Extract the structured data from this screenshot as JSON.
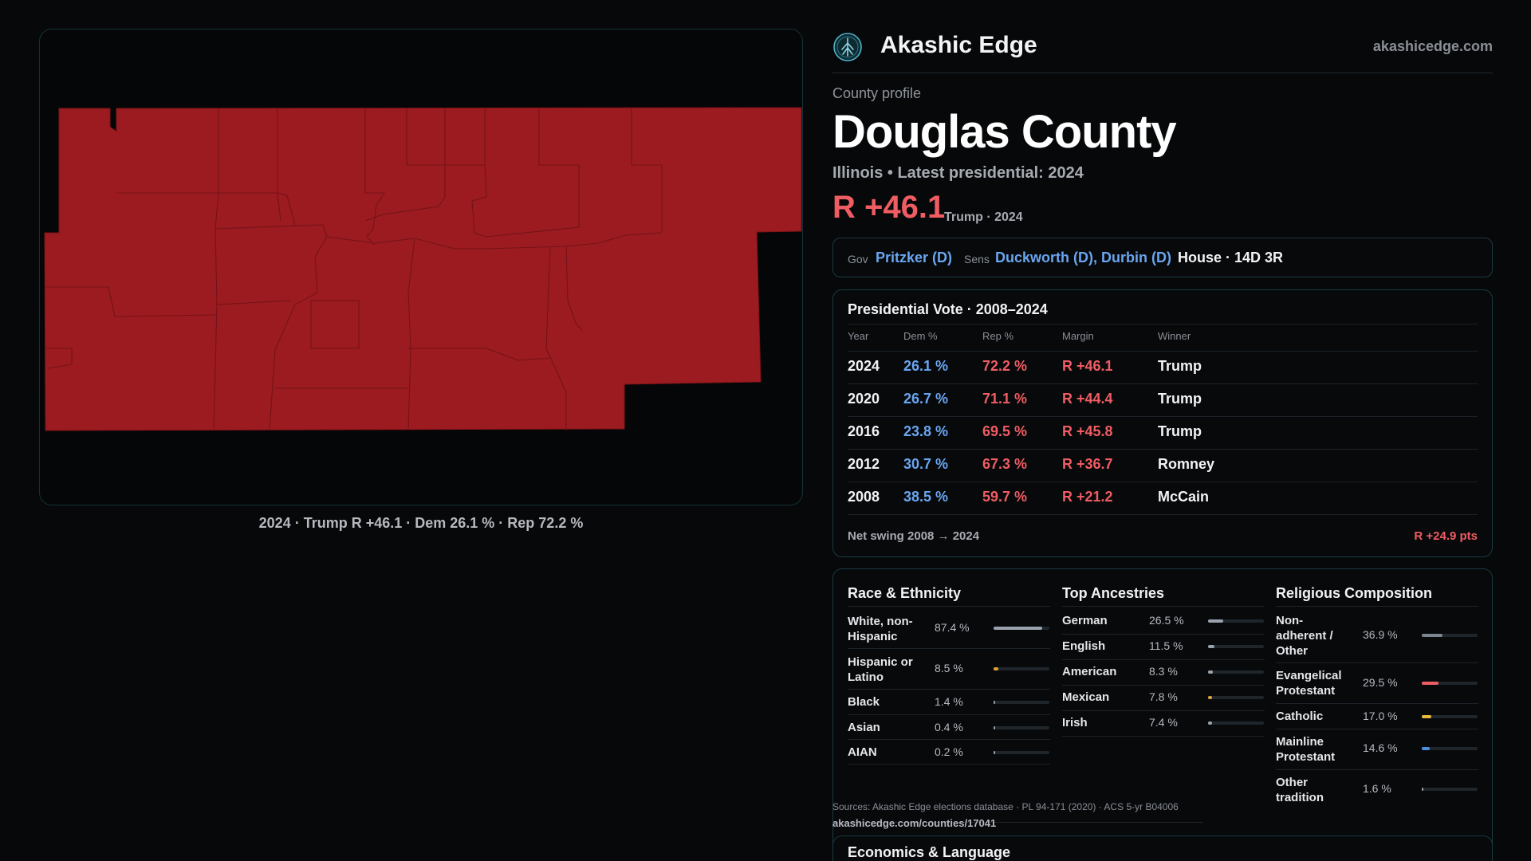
{
  "brand": {
    "name": "Akashic Edge",
    "url": "akashicedge.com",
    "logo_icon": "tree-emblem-icon",
    "accent": "#4fb3c8"
  },
  "profile": {
    "kicker": "County profile",
    "title": "Douglas County",
    "subtitle": "Illinois • Latest presidential: 2024",
    "margin": "R +46.1",
    "margin_note": "Trump · 2024",
    "rep_color": "#9b1b21"
  },
  "map": {
    "caption": "2024 · Trump R +46.1 · Dem 26.1 % · Rep 72.2 %"
  },
  "officials": {
    "gov_label": "Gov",
    "gov": "Pritzker (D)",
    "sens_label": "Sens",
    "sens": "Duckworth (D), Durbin (D)",
    "house": "House · 14D 3R"
  },
  "presidential": {
    "title": "Presidential Vote · 2008–2024",
    "headers": [
      "Year",
      "Dem %",
      "Rep %",
      "Margin",
      "Winner"
    ],
    "rows": [
      {
        "year": "2024",
        "dem": "26.1 %",
        "rep": "72.2 %",
        "margin": "R +46.1",
        "winner": "Trump"
      },
      {
        "year": "2020",
        "dem": "26.7 %",
        "rep": "71.1 %",
        "margin": "R +44.4",
        "winner": "Trump"
      },
      {
        "year": "2016",
        "dem": "23.8 %",
        "rep": "69.5 %",
        "margin": "R +45.8",
        "winner": "Trump"
      },
      {
        "year": "2012",
        "dem": "30.7 %",
        "rep": "67.3 %",
        "margin": "R +36.7",
        "winner": "Romney"
      },
      {
        "year": "2008",
        "dem": "38.5 %",
        "rep": "59.7 %",
        "margin": "R +21.2",
        "winner": "McCain"
      }
    ],
    "swing_label": "Net swing 2008 → 2024",
    "swing_value": "R +24.9 pts"
  },
  "race": {
    "title": "Race & Ethnicity",
    "rows": [
      {
        "label": "White, non-Hispanic",
        "value": "87.4 %",
        "pct": 87.4,
        "color": "#9aa3ad"
      },
      {
        "label": "Hispanic or Latino",
        "value": "8.5 %",
        "pct": 8.5,
        "color": "#e0a13a"
      },
      {
        "label": "Black",
        "value": "1.4 %",
        "pct": 1.4,
        "color": "#9aa3ad"
      },
      {
        "label": "Asian",
        "value": "0.4 %",
        "pct": 0.4,
        "color": "#9aa3ad"
      },
      {
        "label": "AIAN",
        "value": "0.2 %",
        "pct": 0.2,
        "color": "#9aa3ad"
      }
    ]
  },
  "ancestries": {
    "title": "Top Ancestries",
    "rows": [
      {
        "label": "German",
        "value": "26.5 %",
        "pct": 26.5,
        "color": "#9aa3ad"
      },
      {
        "label": "English",
        "value": "11.5 %",
        "pct": 11.5,
        "color": "#9aa3ad"
      },
      {
        "label": "American",
        "value": "8.3 %",
        "pct": 8.3,
        "color": "#9aa3ad"
      },
      {
        "label": "Mexican",
        "value": "7.8 %",
        "pct": 7.8,
        "color": "#e0a13a"
      },
      {
        "label": "Irish",
        "value": "7.4 %",
        "pct": 7.4,
        "color": "#9aa3ad"
      }
    ]
  },
  "religion": {
    "title": "Religious Composition",
    "rows": [
      {
        "label": "Non-adherent / Other",
        "value": "36.9 %",
        "pct": 36.9,
        "color": "#7d8590"
      },
      {
        "label": "Evangelical Protestant",
        "value": "29.5 %",
        "pct": 29.5,
        "color": "#ef5d63"
      },
      {
        "label": "Catholic",
        "value": "17.0 %",
        "pct": 17.0,
        "color": "#e6b93a"
      },
      {
        "label": "Mainline Protestant",
        "value": "14.6 %",
        "pct": 14.6,
        "color": "#4a8fe0"
      },
      {
        "label": "Other tradition",
        "value": "1.6 %",
        "pct": 1.6,
        "color": "#9aa3ad"
      }
    ]
  },
  "sources": {
    "text": "Sources: Akashic Edge elections database · PL 94-171 (2020) · ACS 5-yr B04006",
    "url": "akashicedge.com/counties/17041"
  },
  "economics": {
    "title": "Economics & Language"
  }
}
